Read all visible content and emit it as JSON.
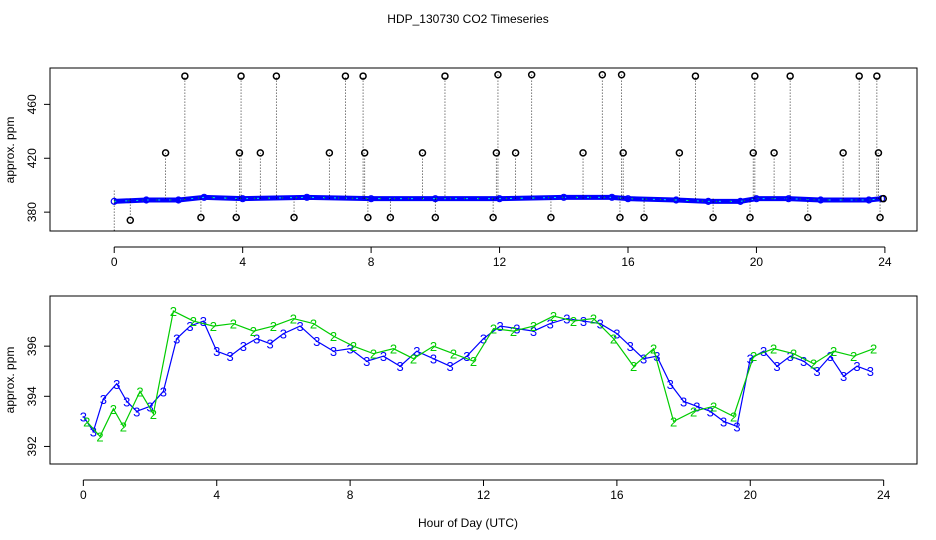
{
  "title": "HDP_130730  CO2 Timeseries",
  "xlabel": "Hour of Day (UTC)",
  "colors": {
    "ink": "#000000",
    "blue": "#0000ff",
    "green": "#00cc00",
    "cyan": "#00e0e0"
  },
  "chart_data": [
    {
      "type": "scatter",
      "name": "top-panel",
      "ylabel": "approx. ppm",
      "xlim": [
        -2,
        25
      ],
      "ylim": [
        366,
        487
      ],
      "x_ticks": [
        0,
        4,
        8,
        12,
        16,
        20,
        24
      ],
      "y_ticks": [
        380,
        420,
        460
      ],
      "baseline": {
        "x": [
          0,
          1,
          2,
          2.8,
          4,
          6,
          8,
          10,
          12,
          14,
          15.5,
          16,
          17.5,
          18.5,
          19.5,
          20,
          21,
          22,
          23.5,
          23.9
        ],
        "y": [
          388,
          389,
          389,
          391,
          390,
          391,
          390,
          390,
          390,
          391,
          391,
          390,
          389,
          388,
          388,
          390,
          390,
          389,
          389,
          390
        ]
      },
      "spikes": [
        {
          "x": 0.5,
          "y": 374
        },
        {
          "x": 1.6,
          "y": 424
        },
        {
          "x": 2.2,
          "y": 481
        },
        {
          "x": 2.7,
          "y": 376
        },
        {
          "x": 3.8,
          "y": 376
        },
        {
          "x": 3.9,
          "y": 424
        },
        {
          "x": 3.95,
          "y": 481
        },
        {
          "x": 4.55,
          "y": 424
        },
        {
          "x": 5.05,
          "y": 481
        },
        {
          "x": 5.6,
          "y": 376
        },
        {
          "x": 6.7,
          "y": 424
        },
        {
          "x": 7.2,
          "y": 481
        },
        {
          "x": 7.75,
          "y": 481
        },
        {
          "x": 7.8,
          "y": 424
        },
        {
          "x": 7.9,
          "y": 376
        },
        {
          "x": 8.6,
          "y": 376
        },
        {
          "x": 9.6,
          "y": 424
        },
        {
          "x": 10.0,
          "y": 376
        },
        {
          "x": 10.3,
          "y": 481
        },
        {
          "x": 11.8,
          "y": 376
        },
        {
          "x": 11.9,
          "y": 424
        },
        {
          "x": 11.95,
          "y": 482
        },
        {
          "x": 12.5,
          "y": 424
        },
        {
          "x": 13.0,
          "y": 482
        },
        {
          "x": 13.6,
          "y": 376
        },
        {
          "x": 14.6,
          "y": 424
        },
        {
          "x": 15.2,
          "y": 482
        },
        {
          "x": 15.75,
          "y": 376
        },
        {
          "x": 15.8,
          "y": 482
        },
        {
          "x": 15.85,
          "y": 424
        },
        {
          "x": 16.5,
          "y": 376
        },
        {
          "x": 17.6,
          "y": 424
        },
        {
          "x": 18.1,
          "y": 481
        },
        {
          "x": 18.65,
          "y": 376
        },
        {
          "x": 19.8,
          "y": 376
        },
        {
          "x": 19.9,
          "y": 424
        },
        {
          "x": 19.95,
          "y": 481
        },
        {
          "x": 20.55,
          "y": 424
        },
        {
          "x": 21.05,
          "y": 481
        },
        {
          "x": 21.6,
          "y": 376
        },
        {
          "x": 22.7,
          "y": 424
        },
        {
          "x": 23.2,
          "y": 481
        },
        {
          "x": 23.75,
          "y": 481
        },
        {
          "x": 23.8,
          "y": 424
        },
        {
          "x": 23.85,
          "y": 376
        },
        {
          "x": 23.95,
          "y": 390
        }
      ]
    },
    {
      "type": "line",
      "name": "bottom-panel",
      "ylabel": "approx. ppm",
      "xlim": [
        -1,
        25
      ],
      "ylim": [
        391.3,
        398.0
      ],
      "x_ticks": [
        0,
        4,
        8,
        12,
        16,
        20,
        24
      ],
      "y_ticks": [
        392,
        394,
        396
      ],
      "series": [
        {
          "name": "3",
          "marker": "3",
          "x": [
            0,
            0.3,
            0.6,
            1,
            1.3,
            1.6,
            2,
            2.4,
            2.8,
            3.2,
            3.6,
            4,
            4.4,
            4.8,
            5.2,
            5.6,
            6,
            6.5,
            7,
            7.5,
            8,
            8.5,
            9,
            9.5,
            10,
            10.5,
            11,
            11.5,
            12,
            12.5,
            13,
            13.5,
            14,
            14.5,
            15,
            15.5,
            16,
            16.4,
            16.8,
            17.2,
            17.6,
            18,
            18.4,
            18.8,
            19.2,
            19.6,
            20,
            20.4,
            20.8,
            21.2,
            21.6,
            22,
            22.4,
            22.8,
            23.2,
            23.6
          ],
          "y": [
            393.2,
            392.6,
            393.9,
            394.5,
            393.8,
            393.4,
            393.6,
            394.2,
            396.3,
            396.8,
            397.0,
            395.8,
            395.6,
            396.0,
            396.3,
            396.1,
            396.5,
            396.8,
            396.2,
            395.8,
            395.9,
            395.4,
            395.6,
            395.2,
            395.8,
            395.5,
            395.2,
            395.6,
            396.3,
            396.8,
            396.7,
            396.6,
            396.9,
            397.1,
            397.0,
            396.9,
            396.5,
            396.0,
            395.5,
            395.6,
            394.5,
            393.8,
            393.6,
            393.4,
            393.0,
            392.8,
            395.5,
            395.8,
            395.2,
            395.6,
            395.4,
            395.0,
            395.6,
            394.8,
            395.2,
            395.0
          ]
        },
        {
          "name": "2",
          "marker": "2",
          "x": [
            0.1,
            0.5,
            0.9,
            1.2,
            1.7,
            2.1,
            2.7,
            3.3,
            3.9,
            4.5,
            5.1,
            5.7,
            6.3,
            6.9,
            7.5,
            8.1,
            8.7,
            9.3,
            9.9,
            10.5,
            11.1,
            11.7,
            12.3,
            12.9,
            13.5,
            14.1,
            14.7,
            15.3,
            15.9,
            16.5,
            17.1,
            17.7,
            18.3,
            18.9,
            19.5,
            20.1,
            20.7,
            21.3,
            21.9,
            22.5,
            23.1,
            23.7
          ],
          "y": [
            393.0,
            392.4,
            393.5,
            392.8,
            394.2,
            393.3,
            397.4,
            397.0,
            396.8,
            396.9,
            396.6,
            396.8,
            397.1,
            396.9,
            396.4,
            396.0,
            395.7,
            395.9,
            395.5,
            396.0,
            395.7,
            395.4,
            396.7,
            396.6,
            396.8,
            397.2,
            397.0,
            397.1,
            396.3,
            395.2,
            395.9,
            393.0,
            393.4,
            393.6,
            393.2,
            395.6,
            395.9,
            395.7,
            395.3,
            395.8,
            395.6,
            395.9
          ]
        }
      ]
    }
  ]
}
